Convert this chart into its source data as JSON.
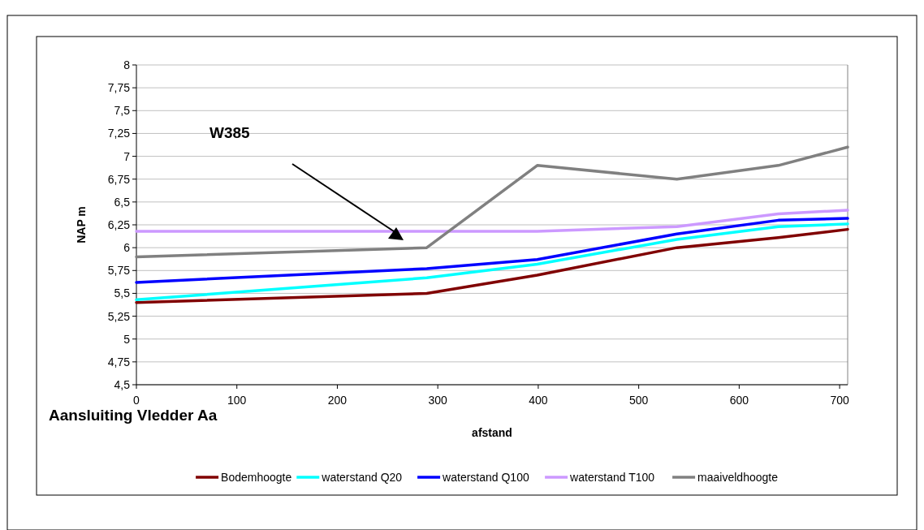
{
  "chart_data": {
    "type": "line",
    "xlabel": "afstand",
    "ylabel": "NAP m",
    "x": [
      0,
      289,
      399,
      538,
      639,
      708
    ],
    "xlim": [
      0,
      708
    ],
    "xticks": [
      0,
      100,
      200,
      300,
      400,
      500,
      600,
      700
    ],
    "ylim": [
      4.5,
      8
    ],
    "yticks": [
      {
        "value": 4.5,
        "label": "4,5"
      },
      {
        "value": 4.75,
        "label": "4,75"
      },
      {
        "value": 5,
        "label": "5"
      },
      {
        "value": 5.25,
        "label": "5,25"
      },
      {
        "value": 5.5,
        "label": "5,5"
      },
      {
        "value": 5.75,
        "label": "5,75"
      },
      {
        "value": 6,
        "label": "6"
      },
      {
        "value": 6.25,
        "label": "6,25"
      },
      {
        "value": 6.5,
        "label": "6,5"
      },
      {
        "value": 6.75,
        "label": "6,75"
      },
      {
        "value": 7,
        "label": "7"
      },
      {
        "value": 7.25,
        "label": "7,25"
      },
      {
        "value": 7.5,
        "label": "7,5"
      },
      {
        "value": 7.75,
        "label": "7,75"
      },
      {
        "value": 8,
        "label": "8"
      }
    ],
    "grid": "y",
    "legend": "bottom",
    "marker": "none",
    "line_style": "solid",
    "series": [
      {
        "name": "Bodemhoogte",
        "color": "#800000",
        "values": [
          5.4,
          5.5,
          5.7,
          6.0,
          6.11,
          6.2
        ]
      },
      {
        "name": "waterstand Q20",
        "color": "#00ffff",
        "values": [
          5.43,
          5.67,
          5.82,
          6.09,
          6.23,
          6.26
        ]
      },
      {
        "name": "waterstand Q100",
        "color": "#0000ff",
        "values": [
          5.62,
          5.77,
          5.87,
          6.15,
          6.3,
          6.32
        ]
      },
      {
        "name": "waterstand T100",
        "color": "#cc99ff",
        "values": [
          6.18,
          6.18,
          6.18,
          6.23,
          6.37,
          6.41
        ]
      },
      {
        "name": "maaiveldhoogte",
        "color": "#808080",
        "values": [
          5.9,
          6.0,
          6.9,
          6.75,
          6.9,
          7.1
        ]
      }
    ],
    "annotations": [
      "W385",
      "Aansluiting Vledder Aa"
    ]
  }
}
